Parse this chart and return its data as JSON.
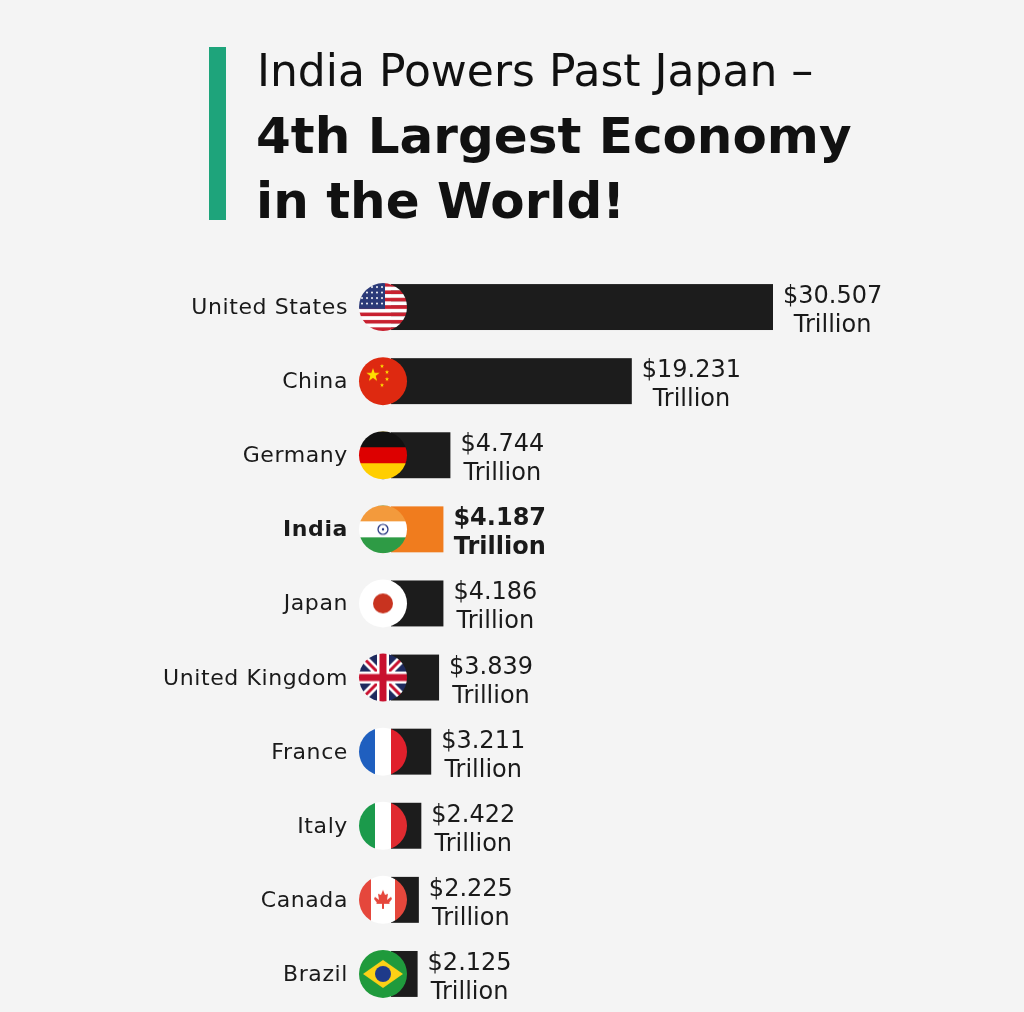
{
  "chart_data": {
    "type": "bar",
    "orientation": "horizontal",
    "title": "India Powers Past Japan –",
    "subtitle": "4th Largest Economy in the World!",
    "categories": [
      "United States",
      "China",
      "Germany",
      "India",
      "Japan",
      "United Kingdom",
      "France",
      "Italy",
      "Canada",
      "Brazil"
    ],
    "values": [
      30.507,
      19.231,
      4.744,
      4.187,
      4.186,
      3.839,
      3.211,
      2.422,
      2.225,
      2.125
    ],
    "colors": [
      "#1c1c1c",
      "#1c1c1c",
      "#1c1c1c",
      "#f07c1e",
      "#1c1c1c",
      "#1c1c1c",
      "#1c1c1c",
      "#1c1c1c",
      "#1c1c1c",
      "#1c1c1c"
    ],
    "value_labels": [
      "$30.507 Trillion",
      "$19.231 Trillion",
      "$4.744 Trillion",
      "$4.187 Trillion",
      "$4.186 Trillion",
      "$3.839 Trillion",
      "$3.211 Trillion",
      "$2.422 Trillion",
      "$2.225 Trillion",
      "$2.125 Trillion"
    ],
    "tick_labels": "y"
  }
}
